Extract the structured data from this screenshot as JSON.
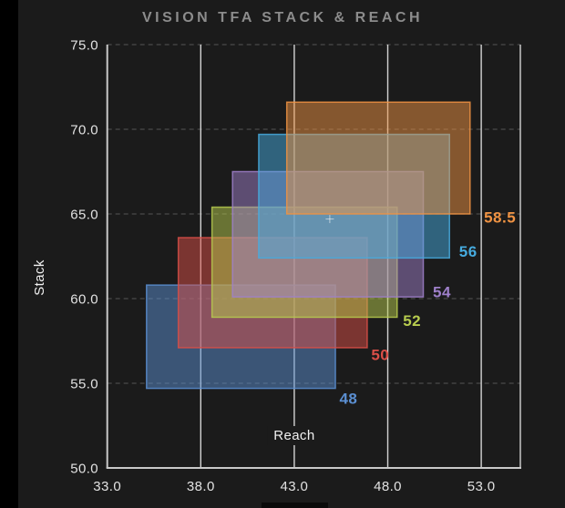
{
  "page": {
    "background": "#1b1b1b",
    "left_strip_color": "#000000",
    "bottom_bar_color": "#0a0a0a",
    "title_color": "#8c8c8c"
  },
  "chart_data": {
    "type": "scatter",
    "mark": "range-rectangles",
    "title": "VISION TFA STACK & REACH",
    "xlabel": "Reach",
    "ylabel": "Stack",
    "xlim": [
      33.0,
      55.09
    ],
    "ylim": [
      50.0,
      75.0
    ],
    "x_ticks": [
      33,
      38,
      43,
      48,
      53
    ],
    "x_tick_labels": [
      "33.0",
      "38.0",
      "43.0",
      "48.0",
      "53.0"
    ],
    "y_ticks": [
      50,
      55,
      60,
      65,
      70,
      75
    ],
    "y_tick_labels": [
      "50.0",
      "55.0",
      "60.0",
      "65.0",
      "70.0",
      "75.0"
    ],
    "grid": {
      "vertical_style": "solid",
      "horizontal_style": "dashed",
      "vertical_color": "#d4d4d4",
      "horizontal_color": "#555555",
      "spine_color": "#c9c9c9"
    },
    "legend_position": "labels-at-rect-corners",
    "series": [
      {
        "name": "48",
        "color": "#5b8fd2",
        "reach": [
          35.1,
          45.2
        ],
        "stack": [
          54.7,
          60.8
        ],
        "label_pos": [
          45.9,
          54.1
        ]
      },
      {
        "name": "50",
        "color": "#db4f48",
        "reach": [
          36.8,
          46.9
        ],
        "stack": [
          57.1,
          63.6
        ],
        "label_pos": [
          47.6,
          56.7
        ]
      },
      {
        "name": "52",
        "color": "#b7cc4e",
        "reach": [
          38.6,
          48.5
        ],
        "stack": [
          58.9,
          65.4
        ],
        "label_pos": [
          49.3,
          58.7
        ]
      },
      {
        "name": "54",
        "color": "#9f80ca",
        "reach": [
          39.7,
          49.9
        ],
        "stack": [
          60.1,
          67.5
        ],
        "label_pos": [
          50.9,
          60.4
        ]
      },
      {
        "name": "56",
        "color": "#46abdf",
        "reach": [
          41.1,
          51.3
        ],
        "stack": [
          62.4,
          69.7
        ],
        "label_pos": [
          52.3,
          62.8
        ]
      },
      {
        "name": "58.5",
        "color": "#f09343",
        "reach": [
          42.6,
          52.4
        ],
        "stack": [
          65.0,
          71.6
        ],
        "label_pos": [
          54.0,
          64.8
        ]
      }
    ],
    "marker": {
      "shape": "plus",
      "reach": 44.9,
      "stack": 64.7,
      "color": "#ffffff",
      "opacity": 0.55
    }
  }
}
